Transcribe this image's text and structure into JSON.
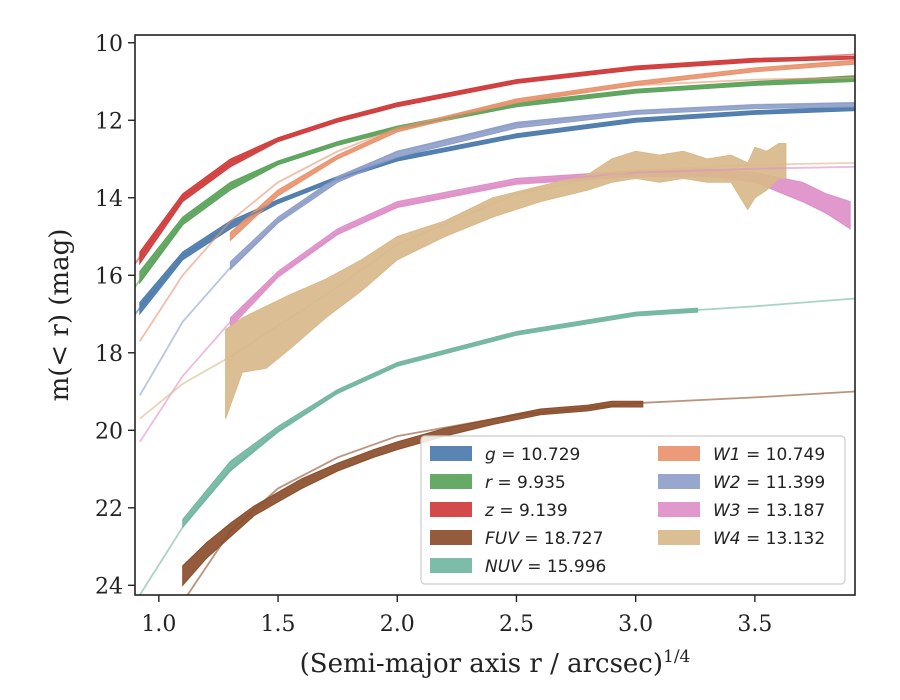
{
  "chart_data": {
    "type": "area",
    "xlabel": "(Semi-major axis r / arcsec)",
    "xlabel_sup": "1/4",
    "ylabel": "m(< r) (mag)",
    "xlim": [
      0.9,
      3.92
    ],
    "ylim": [
      24.25,
      9.8
    ],
    "y_inverted": true,
    "grid": false,
    "legend_position": "lower right",
    "x_ticks": [
      1.0,
      1.5,
      2.0,
      2.5,
      3.0,
      3.5
    ],
    "x_tick_labels": [
      "1.0",
      "1.5",
      "2.0",
      "2.5",
      "3.0",
      "3.5"
    ],
    "y_ticks": [
      10,
      12,
      14,
      16,
      18,
      20,
      22,
      24
    ],
    "y_tick_labels": [
      "10",
      "12",
      "14",
      "16",
      "18",
      "20",
      "22",
      "24"
    ],
    "series": [
      {
        "name": "g = 10.729",
        "label_var": "g",
        "label_val": "= 10.729",
        "color": "#4c7bab",
        "model": {
          "x": [
            0.9,
            1.1,
            1.3,
            1.5,
            1.75,
            2.0,
            2.5,
            3.0,
            3.5,
            3.92
          ],
          "y": [
            17.0,
            15.5,
            14.7,
            14.1,
            13.5,
            13.0,
            12.4,
            12.0,
            11.8,
            11.7
          ]
        },
        "band": {
          "x": [
            0.92,
            1.1,
            1.3,
            1.5,
            1.75,
            2.0,
            2.5,
            3.0,
            3.5,
            3.92
          ],
          "lo": [
            16.7,
            15.4,
            14.6,
            14.05,
            13.45,
            12.95,
            12.35,
            11.95,
            11.75,
            11.65
          ],
          "hi": [
            17.0,
            15.6,
            14.8,
            14.15,
            13.55,
            13.05,
            12.45,
            12.05,
            11.85,
            11.75
          ]
        }
      },
      {
        "name": "r = 9.935",
        "label_var": "r",
        "label_val": "= 9.935",
        "color": "#5aa35a",
        "model": {
          "x": [
            0.9,
            1.1,
            1.3,
            1.5,
            1.75,
            2.0,
            2.5,
            3.0,
            3.5,
            3.92
          ],
          "y": [
            16.3,
            14.6,
            13.7,
            13.1,
            12.6,
            12.2,
            11.6,
            11.25,
            11.05,
            10.95
          ]
        },
        "band": {
          "x": [
            0.92,
            1.1,
            1.3,
            1.5,
            1.75,
            2.0,
            2.5,
            3.0,
            3.5,
            3.92
          ],
          "lo": [
            15.9,
            14.5,
            13.6,
            13.05,
            12.55,
            12.15,
            11.55,
            11.2,
            11.0,
            10.85
          ],
          "hi": [
            16.2,
            14.7,
            13.8,
            13.15,
            12.65,
            12.25,
            11.65,
            11.3,
            11.1,
            11.0
          ]
        }
      },
      {
        "name": "z = 9.139",
        "label_var": "z",
        "label_val": "= 9.139",
        "color": "#d03a3a",
        "model": {
          "x": [
            0.9,
            1.1,
            1.3,
            1.5,
            1.75,
            2.0,
            2.5,
            3.0,
            3.5,
            3.92
          ],
          "y": [
            15.7,
            14.0,
            13.1,
            12.5,
            12.0,
            11.6,
            11.0,
            10.65,
            10.45,
            10.3
          ]
        },
        "band": {
          "x": [
            0.92,
            1.1,
            1.3,
            1.5,
            1.75,
            2.0,
            2.5,
            3.0,
            3.5,
            3.92
          ],
          "lo": [
            15.4,
            13.9,
            13.0,
            12.45,
            11.95,
            11.55,
            10.95,
            10.6,
            10.4,
            10.35
          ],
          "hi": [
            15.7,
            14.1,
            13.2,
            12.55,
            12.05,
            11.65,
            11.05,
            10.7,
            10.5,
            10.42
          ]
        }
      },
      {
        "name": "FUV = 18.727",
        "label_var": "FUV",
        "label_val": "= 18.727",
        "color": "#8b4e2b",
        "model": {
          "x": [
            1.12,
            1.3,
            1.5,
            1.75,
            2.0,
            2.5,
            3.0,
            3.5,
            3.92
          ],
          "y": [
            24.25,
            22.6,
            21.5,
            20.7,
            20.15,
            19.6,
            19.3,
            19.15,
            19.0
          ]
        },
        "band": {
          "x": [
            1.1,
            1.2,
            1.3,
            1.4,
            1.5,
            1.6,
            1.75,
            1.9,
            2.0,
            2.2,
            2.4,
            2.6,
            2.8,
            2.9,
            3.0,
            3.03
          ],
          "lo": [
            23.5,
            22.9,
            22.4,
            21.95,
            21.6,
            21.25,
            20.85,
            20.5,
            20.3,
            19.95,
            19.7,
            19.45,
            19.35,
            19.25,
            19.25,
            19.25
          ],
          "hi": [
            24.0,
            23.3,
            22.75,
            22.2,
            21.85,
            21.5,
            21.05,
            20.7,
            20.5,
            20.15,
            19.85,
            19.6,
            19.5,
            19.4,
            19.4,
            19.4
          ]
        }
      },
      {
        "name": "NUV = 15.996",
        "label_var": "NUV",
        "label_val": "= 15.996",
        "color": "#72b6a1",
        "model": {
          "x": [
            0.92,
            1.1,
            1.3,
            1.5,
            1.75,
            2.0,
            2.5,
            3.0,
            3.5,
            3.92
          ],
          "y": [
            24.25,
            22.5,
            21.0,
            20.0,
            19.0,
            18.3,
            17.5,
            17.0,
            16.8,
            16.6
          ]
        },
        "band": {
          "x": [
            1.1,
            1.3,
            1.5,
            1.75,
            2.0,
            2.25,
            2.5,
            2.75,
            3.0,
            3.26
          ],
          "lo": [
            22.3,
            20.8,
            19.9,
            18.95,
            18.25,
            17.85,
            17.45,
            17.2,
            16.95,
            16.85
          ],
          "hi": [
            22.5,
            21.05,
            20.05,
            19.05,
            18.35,
            17.95,
            17.55,
            17.3,
            17.05,
            16.95
          ]
        }
      },
      {
        "name": "W1 = 10.749",
        "label_var": "W1",
        "label_val": "= 10.749",
        "color": "#e9936e",
        "model": {
          "x": [
            0.92,
            1.1,
            1.3,
            1.5,
            1.75,
            2.0,
            2.5,
            3.0,
            3.5,
            3.92
          ],
          "y": [
            17.7,
            16.0,
            14.6,
            13.6,
            12.8,
            12.2,
            11.5,
            11.1,
            10.95,
            10.9
          ]
        },
        "band": {
          "x": [
            1.3,
            1.5,
            1.75,
            2.0,
            2.5,
            3.0,
            3.5,
            3.92
          ],
          "lo": [
            14.9,
            13.8,
            12.9,
            12.2,
            11.45,
            11.0,
            10.65,
            10.45
          ],
          "hi": [
            15.1,
            13.95,
            13.0,
            12.3,
            11.55,
            11.1,
            10.75,
            10.55
          ]
        }
      },
      {
        "name": "W2 = 11.399",
        "label_var": "W2",
        "label_val": "= 11.399",
        "color": "#8f9fc9",
        "model": {
          "x": [
            0.92,
            1.1,
            1.3,
            1.5,
            1.75,
            2.0,
            2.5,
            3.0,
            3.5,
            3.92
          ],
          "y": [
            19.1,
            17.2,
            15.8,
            14.6,
            13.5,
            12.8,
            12.1,
            11.75,
            11.6,
            11.55
          ]
        },
        "band": {
          "x": [
            1.3,
            1.5,
            1.75,
            2.0,
            2.5,
            3.0,
            3.5,
            3.92
          ],
          "lo": [
            15.65,
            14.5,
            13.45,
            12.8,
            12.05,
            11.75,
            11.6,
            11.55
          ],
          "hi": [
            15.85,
            14.65,
            13.6,
            12.95,
            12.2,
            11.85,
            11.7,
            11.65
          ]
        }
      },
      {
        "name": "W3 = 13.187",
        "label_var": "W3",
        "label_val": "= 13.187",
        "color": "#de8fc8",
        "model": {
          "x": [
            0.92,
            1.1,
            1.3,
            1.5,
            1.75,
            2.0,
            2.5,
            3.0,
            3.5,
            3.92
          ],
          "y": [
            20.3,
            18.6,
            17.2,
            16.0,
            14.9,
            14.2,
            13.6,
            13.35,
            13.25,
            13.2
          ]
        },
        "band": {
          "x": [
            1.3,
            1.5,
            1.75,
            2.0,
            2.5,
            3.0,
            3.3,
            3.5,
            3.7,
            3.8,
            3.9
          ],
          "lo": [
            17.1,
            15.9,
            14.8,
            14.1,
            13.5,
            13.3,
            13.25,
            13.35,
            13.6,
            13.9,
            14.1
          ],
          "hi": [
            17.35,
            16.05,
            14.95,
            14.25,
            13.65,
            13.45,
            13.45,
            13.6,
            14.1,
            14.4,
            14.8
          ]
        }
      },
      {
        "name": "W4 = 13.132",
        "label_var": "W4",
        "label_val": "= 13.132",
        "color": "#d9b98b",
        "model": {
          "x": [
            0.92,
            1.1,
            1.3,
            1.5,
            1.75,
            2.0,
            2.5,
            3.0,
            3.5,
            3.92
          ],
          "y": [
            19.7,
            18.8,
            18.1,
            17.3,
            16.3,
            15.2,
            13.9,
            13.3,
            13.15,
            13.1
          ]
        },
        "band": {
          "x": [
            1.28,
            1.35,
            1.45,
            1.55,
            1.7,
            1.85,
            2.0,
            2.2,
            2.4,
            2.6,
            2.8,
            2.9,
            3.0,
            3.1,
            3.2,
            3.3,
            3.4,
            3.47,
            3.5,
            3.55,
            3.6,
            3.63
          ],
          "lo": [
            17.4,
            17.1,
            16.8,
            16.5,
            16.1,
            15.6,
            15.0,
            14.6,
            14.0,
            13.7,
            13.4,
            13.0,
            12.8,
            12.9,
            12.8,
            13.0,
            12.9,
            13.1,
            12.7,
            12.8,
            12.6,
            12.6
          ],
          "hi": [
            19.7,
            18.5,
            18.4,
            17.9,
            17.1,
            16.4,
            15.6,
            15.0,
            14.5,
            14.1,
            13.8,
            13.6,
            13.5,
            13.6,
            13.5,
            13.6,
            13.6,
            14.3,
            14.0,
            13.8,
            13.5,
            13.5
          ]
        }
      }
    ]
  }
}
